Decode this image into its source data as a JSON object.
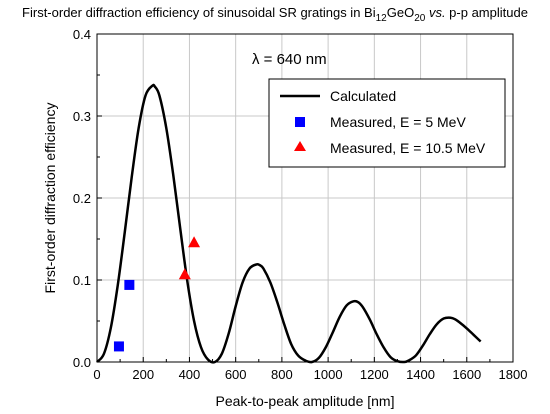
{
  "chart_data": {
    "type": "line",
    "title": {
      "pre": "First-order diffraction efficiency of sinusoidal SR gratings in Bi",
      "sub1": "12",
      "mid": "GeO",
      "sub2": "20",
      "italic": " vs.",
      "post": " p-p amplitude"
    },
    "xlabel": "Peak-to-peak amplitude [nm]",
    "ylabel": "First-order diffraction efficiency",
    "xlim": [
      0,
      1800
    ],
    "ylim": [
      0,
      0.4
    ],
    "xticks": [
      "0",
      "200",
      "400",
      "600",
      "800",
      "1000",
      "1200",
      "1400",
      "1600",
      "1800"
    ],
    "yticks": [
      "0.0",
      "0.1",
      "0.2",
      "0.3",
      "0.4"
    ],
    "grid": true,
    "annotation": "λ = 640 nm",
    "legend_position": "top-right",
    "series": [
      {
        "name": "Calculated",
        "kind": "line",
        "color": "#000000",
        "x": [
          0,
          30,
          60,
          90,
          120,
          150,
          180,
          210,
          240,
          250,
          270,
          300,
          330,
          360,
          390,
          420,
          450,
          480,
          510,
          540,
          570,
          600,
          630,
          660,
          690,
          705,
          720,
          750,
          780,
          810,
          840,
          870,
          900,
          930,
          960,
          990,
          1020,
          1050,
          1080,
          1110,
          1130,
          1150,
          1180,
          1210,
          1240,
          1270,
          1300,
          1330,
          1350,
          1380,
          1410,
          1440,
          1470,
          1500,
          1530,
          1550,
          1570,
          1600,
          1630,
          1660
        ],
        "y": [
          0,
          0.01,
          0.042,
          0.094,
          0.158,
          0.225,
          0.285,
          0.325,
          0.337,
          0.336,
          0.325,
          0.285,
          0.228,
          0.163,
          0.1,
          0.05,
          0.018,
          0.003,
          0.0,
          0.01,
          0.035,
          0.068,
          0.097,
          0.114,
          0.119,
          0.118,
          0.114,
          0.097,
          0.073,
          0.046,
          0.022,
          0.008,
          0.002,
          0.0,
          0.005,
          0.018,
          0.036,
          0.055,
          0.069,
          0.074,
          0.073,
          0.067,
          0.052,
          0.034,
          0.018,
          0.006,
          0.001,
          0.0,
          0.002,
          0.008,
          0.02,
          0.034,
          0.046,
          0.053,
          0.054,
          0.052,
          0.048,
          0.041,
          0.033,
          0.025
        ]
      },
      {
        "name": "Measured, E = 5 MeV",
        "kind": "square",
        "color": "#0000ff",
        "x": [
          95,
          140
        ],
        "y": [
          0.019,
          0.094
        ]
      },
      {
        "name": "Measured, E = 10.5 MeV",
        "kind": "triangle",
        "color": "#ff0000",
        "x": [
          380,
          420
        ],
        "y": [
          0.107,
          0.146
        ]
      }
    ]
  }
}
